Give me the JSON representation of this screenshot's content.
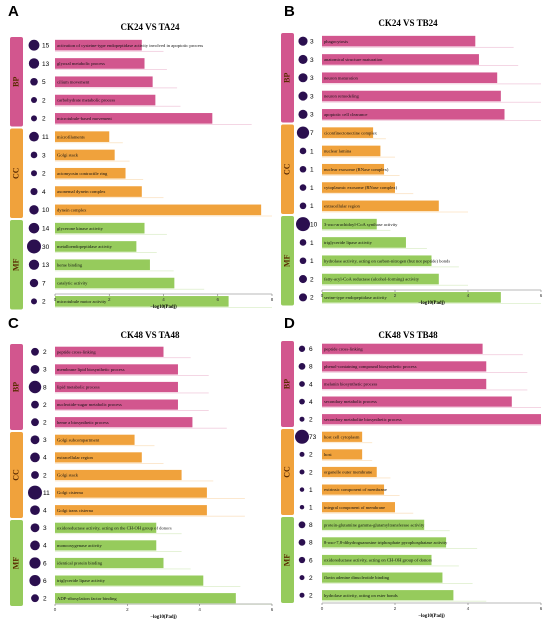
{
  "colors": {
    "BP": "#d2568e",
    "CC": "#f0a23c",
    "MF": "#96cb5c",
    "dot": "#2b0f4f",
    "axis": "#777777"
  },
  "chart_data": [
    {
      "type": "bar",
      "letter": "A",
      "title": "CK24 VS TA24",
      "xlabel": "−log10(Padj)",
      "xlim": [
        0,
        8
      ],
      "xticks": [
        0,
        2,
        4,
        6,
        8
      ],
      "groups": [
        {
          "name": "BP",
          "items": [
            {
              "label": "activation of cysteine-type endopeptidase activity involved in apoptotic process",
              "value": 3.2,
              "count": 15
            },
            {
              "label": "glyoxal metabolic process",
              "value": 3.3,
              "count": 13
            },
            {
              "label": "cilium movement",
              "value": 3.6,
              "count": 5
            },
            {
              "label": "carbohydrate metabolic process",
              "value": 3.7,
              "count": 2
            },
            {
              "label": "microtubule-based movement",
              "value": 5.8,
              "count": 2
            }
          ]
        },
        {
          "name": "CC",
          "items": [
            {
              "label": "microfilaments",
              "value": 2.0,
              "count": 11
            },
            {
              "label": "Golgi stack",
              "value": 2.2,
              "count": 3
            },
            {
              "label": "actomyosin contractile ring",
              "value": 2.6,
              "count": 2
            },
            {
              "label": "axonemal dynein complex",
              "value": 3.2,
              "count": 4
            },
            {
              "label": "dynein complex",
              "value": 7.6,
              "count": 10
            }
          ]
        },
        {
          "name": "MF",
          "items": [
            {
              "label": "glycerone kinase activity",
              "value": 3.3,
              "count": 14
            },
            {
              "label": "metalloendopeptidase activity",
              "value": 3.0,
              "count": 30
            },
            {
              "label": "heme binding",
              "value": 3.5,
              "count": 13
            },
            {
              "label": "catalytic activity",
              "value": 4.4,
              "count": 7
            },
            {
              "label": "microtubule motor activity",
              "value": 6.4,
              "count": 2
            }
          ]
        }
      ]
    },
    {
      "type": "bar",
      "letter": "B",
      "title": "CK24 VS TB24",
      "xlabel": "−log10(Padj)",
      "xlim": [
        0,
        6
      ],
      "xticks": [
        0,
        2,
        4,
        6
      ],
      "groups": [
        {
          "name": "BP",
          "items": [
            {
              "label": "phagocytosis",
              "value": 4.2,
              "count": 3
            },
            {
              "label": "anatomical structure maturation",
              "value": 4.3,
              "count": 3
            },
            {
              "label": "neuron maturation",
              "value": 4.8,
              "count": 3
            },
            {
              "label": "neuron remodeling",
              "value": 4.9,
              "count": 3
            },
            {
              "label": "apoptotic cell clearance",
              "value": 5.0,
              "count": 3
            }
          ]
        },
        {
          "name": "CC",
          "items": [
            {
              "label": "ciconfinectonectine complex",
              "value": 1.4,
              "count": 7
            },
            {
              "label": "nuclear lamina",
              "value": 1.6,
              "count": 1
            },
            {
              "label": "nuclear exosome (RNase complex)",
              "value": 1.7,
              "count": 1
            },
            {
              "label": "cytoplasmic exosome (RNase complex)",
              "value": 2.0,
              "count": 1
            },
            {
              "label": "extracellular region",
              "value": 3.2,
              "count": 1
            }
          ]
        },
        {
          "name": "MF",
          "items": [
            {
              "label": "3-oxo-arachidoyl-CoA synthase activity",
              "value": 1.5,
              "count": 10
            },
            {
              "label": "triglyceride lipase activity",
              "value": 2.3,
              "count": 1
            },
            {
              "label": "hydrolase activity, acting on carbon-nitrogen (but not peptide) bonds",
              "value": 3.0,
              "count": 1
            },
            {
              "label": "fatty-acyl-CoA reductase (alcohol-forming) activity",
              "value": 3.2,
              "count": 2
            },
            {
              "label": "serine-type endopeptidase activity",
              "value": 4.9,
              "count": 2
            }
          ]
        }
      ]
    },
    {
      "type": "bar",
      "letter": "C",
      "title": "CK48 VS TA48",
      "xlabel": "−log10(Padj)",
      "xlim": [
        0,
        6
      ],
      "xticks": [
        0,
        2,
        4,
        6
      ],
      "groups": [
        {
          "name": "BP",
          "items": [
            {
              "label": "peptide cross-linking",
              "value": 3.0,
              "count": 2
            },
            {
              "label": "membrane lipid biosynthetic process",
              "value": 3.4,
              "count": 3
            },
            {
              "label": "lipid metabolic process",
              "value": 3.4,
              "count": 8
            },
            {
              "label": "nucleotide-sugar metabolic process",
              "value": 3.4,
              "count": 2
            },
            {
              "label": "heme a biosynthetic process",
              "value": 3.8,
              "count": 2
            }
          ]
        },
        {
          "name": "CC",
          "items": [
            {
              "label": "Golgi subcompartment",
              "value": 2.2,
              "count": 3
            },
            {
              "label": "extracellular region",
              "value": 2.4,
              "count": 4
            },
            {
              "label": "Golgi stack",
              "value": 3.5,
              "count": 2
            },
            {
              "label": "Golgi cisterna",
              "value": 4.2,
              "count": 11
            },
            {
              "label": "Golgi trans cisterna",
              "value": 4.2,
              "count": 4
            }
          ]
        },
        {
          "name": "MF",
          "items": [
            {
              "label": "oxidoreductase activity, acting on the CH-OH group of donors",
              "value": 2.8,
              "count": 3
            },
            {
              "label": "monooxygenase activity",
              "value": 2.8,
              "count": 4
            },
            {
              "label": "identical protein binding",
              "value": 3.0,
              "count": 6
            },
            {
              "label": "triglyceride lipase activity",
              "value": 4.1,
              "count": 6
            },
            {
              "label": "ADP-ribosylation factor binding",
              "value": 5.0,
              "count": 2
            }
          ]
        }
      ]
    },
    {
      "type": "bar",
      "letter": "D",
      "title": "CK48 VS TB48",
      "xlabel": "−log10(Padj)",
      "xlim": [
        0,
        6
      ],
      "xticks": [
        0,
        2,
        4,
        6
      ],
      "groups": [
        {
          "name": "BP",
          "items": [
            {
              "label": "peptide cross-linking",
              "value": 4.4,
              "count": 6
            },
            {
              "label": "phenol-containing compound biosynthetic process",
              "value": 4.5,
              "count": 8
            },
            {
              "label": "melanin biosynthetic process",
              "value": 4.5,
              "count": 4
            },
            {
              "label": "secondary metabolic process",
              "value": 5.2,
              "count": 4
            },
            {
              "label": "secondary metabolite biosynthetic process",
              "value": 6.0,
              "count": 2
            }
          ]
        },
        {
          "name": "CC",
          "items": [
            {
              "label": "host cell cytoplasm",
              "value": 1.1,
              "count": 73
            },
            {
              "label": "host",
              "value": 1.1,
              "count": 2
            },
            {
              "label": "organelle outer membrane",
              "value": 1.5,
              "count": 2
            },
            {
              "label": "extrinsic component of membrane",
              "value": 1.7,
              "count": 1
            },
            {
              "label": "integral component of membrane",
              "value": 2.0,
              "count": 1
            }
          ]
        },
        {
          "name": "MF",
          "items": [
            {
              "label": "protein-glutamine gamma-glutamyltransferase activity",
              "value": 2.8,
              "count": 8
            },
            {
              "label": "8-oxo-7,8-dihydroguanosine triphosphate pyrophosphatase activity",
              "value": 3.4,
              "count": 8
            },
            {
              "label": "oxidoreductase activity, acting on CH-OH group of donors",
              "value": 3.0,
              "count": 6
            },
            {
              "label": "flavin adenine dinucleotide binding",
              "value": 3.3,
              "count": 2
            },
            {
              "label": "hydrolase activity, acting on ester bonds",
              "value": 3.6,
              "count": 2
            }
          ]
        }
      ]
    }
  ]
}
